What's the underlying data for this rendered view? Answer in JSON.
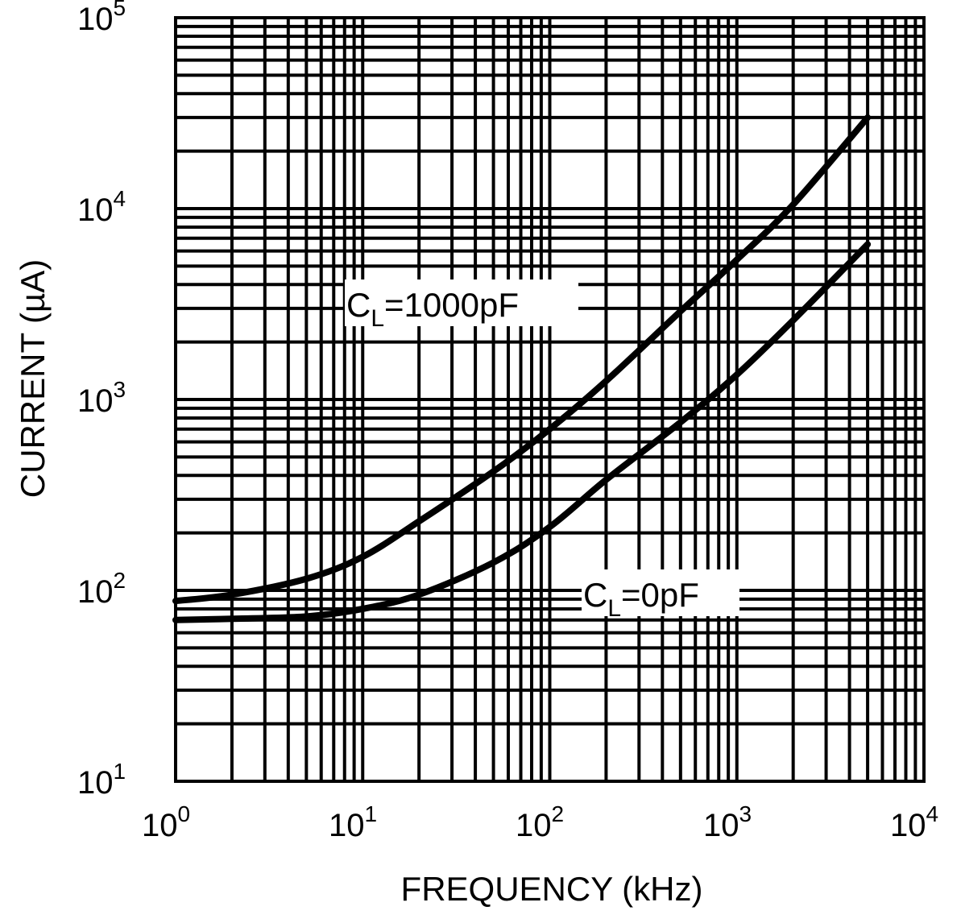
{
  "chart_data": {
    "type": "line",
    "title": "",
    "xlabel": "FREQUENCY (kHz)",
    "ylabel": "CURRENT (µA)",
    "x_scale": "log",
    "y_scale": "log",
    "xlim": [
      1,
      10000
    ],
    "ylim": [
      10,
      100000
    ],
    "grid": true,
    "x_ticks": [
      {
        "base": "10",
        "exp": "0"
      },
      {
        "base": "10",
        "exp": "1"
      },
      {
        "base": "10",
        "exp": "2"
      },
      {
        "base": "10",
        "exp": "3"
      },
      {
        "base": "10",
        "exp": "4"
      }
    ],
    "y_ticks": [
      {
        "base": "10",
        "exp": "1"
      },
      {
        "base": "10",
        "exp": "2"
      },
      {
        "base": "10",
        "exp": "3"
      },
      {
        "base": "10",
        "exp": "4"
      },
      {
        "base": "10",
        "exp": "5"
      }
    ],
    "series": [
      {
        "name": "CL=1000pF",
        "label_main": "C",
        "label_sub": "L",
        "label_rest": "=1000pF",
        "x": [
          1,
          2,
          5,
          10,
          20,
          50,
          100,
          200,
          500,
          1000,
          2000,
          5000
        ],
        "y": [
          88,
          95,
          115,
          150,
          230,
          420,
          700,
          1250,
          2900,
          5400,
          10500,
          30000
        ]
      },
      {
        "name": "CL=0pF",
        "label_main": "C",
        "label_sub": "L",
        "label_rest": "=0pF",
        "x": [
          1,
          2,
          5,
          10,
          20,
          50,
          100,
          200,
          500,
          1000,
          2000,
          5000
        ],
        "y": [
          70,
          71,
          73,
          80,
          95,
          140,
          215,
          380,
          760,
          1350,
          2600,
          6500
        ]
      }
    ],
    "line_color": "#000000",
    "grid_color": "#000000"
  }
}
